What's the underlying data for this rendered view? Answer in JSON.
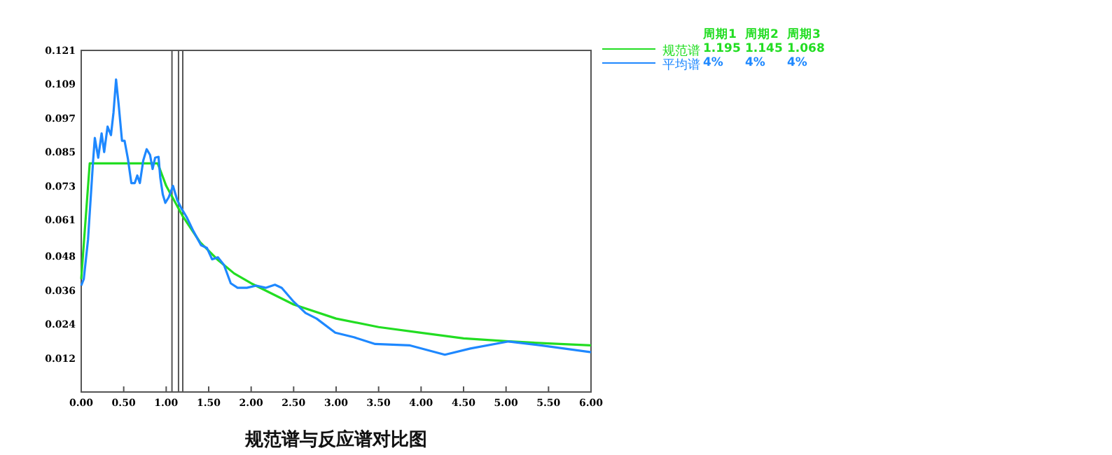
{
  "chart_data": {
    "type": "line",
    "title": "规范谱与反应谱对比图",
    "xlim": [
      0,
      6
    ],
    "ylim": [
      0,
      0.121
    ],
    "xticks": [
      {
        "value": 0,
        "label": "0.00"
      },
      {
        "value": 0.5,
        "label": "0.50"
      },
      {
        "value": 1,
        "label": "1.00"
      },
      {
        "value": 1.5,
        "label": "1.50"
      },
      {
        "value": 2,
        "label": "2.00"
      },
      {
        "value": 2.5,
        "label": "2.50"
      },
      {
        "value": 3,
        "label": "3.00"
      },
      {
        "value": 3.5,
        "label": "3.50"
      },
      {
        "value": 4,
        "label": "4.00"
      },
      {
        "value": 4.5,
        "label": "4.50"
      },
      {
        "value": 5,
        "label": "5.00"
      },
      {
        "value": 5.5,
        "label": "5.50"
      },
      {
        "value": 6,
        "label": "6.00"
      }
    ],
    "yticks": [
      0.012,
      0.024,
      0.036,
      0.048,
      0.061,
      0.073,
      0.085,
      0.097,
      0.109,
      0.121
    ],
    "legend": "right",
    "grid": false,
    "marker": "none",
    "line_style": "solid",
    "series": [
      {
        "name": "规范谱",
        "color": "#22dd22",
        "x": [
          0,
          0.1,
          0.9,
          1.0,
          1.2,
          1.4,
          1.6,
          1.8,
          2.0,
          2.5,
          3.0,
          3.5,
          4.0,
          4.5,
          5.0,
          5.5,
          6.0
        ],
        "values": [
          0.04,
          0.081,
          0.081,
          0.073,
          0.062,
          0.053,
          0.047,
          0.042,
          0.0385,
          0.031,
          0.026,
          0.023,
          0.021,
          0.019,
          0.018,
          0.0172,
          0.0165
        ]
      },
      {
        "name": "平均谱",
        "color": "#1e88ff",
        "x": [
          0,
          0.03,
          0.08,
          0.14,
          0.16,
          0.2,
          0.24,
          0.27,
          0.31,
          0.35,
          0.38,
          0.41,
          0.44,
          0.48,
          0.51,
          0.55,
          0.59,
          0.63,
          0.66,
          0.69,
          0.73,
          0.77,
          0.81,
          0.84,
          0.87,
          0.91,
          0.93,
          0.96,
          0.99,
          1.03,
          1.08,
          1.13,
          1.18,
          1.24,
          1.32,
          1.41,
          1.48,
          1.54,
          1.61,
          1.68,
          1.76,
          1.84,
          1.95,
          2.06,
          2.17,
          2.28,
          2.36,
          2.5,
          2.64,
          2.77,
          2.99,
          3.21,
          3.46,
          3.87,
          4.28,
          4.58,
          5.03,
          5.41,
          6.0
        ],
        "values": [
          0.0377,
          0.04,
          0.054,
          0.082,
          0.09,
          0.083,
          0.0916,
          0.085,
          0.094,
          0.091,
          0.099,
          0.1107,
          0.102,
          0.089,
          0.089,
          0.0825,
          0.074,
          0.074,
          0.0767,
          0.074,
          0.082,
          0.086,
          0.084,
          0.079,
          0.083,
          0.0833,
          0.076,
          0.07,
          0.067,
          0.069,
          0.073,
          0.068,
          0.065,
          0.062,
          0.057,
          0.052,
          0.051,
          0.047,
          0.0477,
          0.045,
          0.0385,
          0.0369,
          0.0369,
          0.0377,
          0.0369,
          0.038,
          0.0369,
          0.032,
          0.028,
          0.026,
          0.021,
          0.0194,
          0.017,
          0.0165,
          0.0132,
          0.0154,
          0.0179,
          0.0165,
          0.0141
        ]
      }
    ],
    "ref_lines": [
      {
        "axis": "x",
        "value": 1.068,
        "color": "#555555"
      },
      {
        "axis": "x",
        "value": 1.145,
        "color": "#555555"
      },
      {
        "axis": "x",
        "value": 1.195,
        "color": "#555555"
      }
    ],
    "annotations": [
      "周期1",
      "周期2",
      "周期3",
      "1.195",
      "1.145",
      "1.068",
      "4%",
      "4%",
      "4%"
    ]
  }
}
